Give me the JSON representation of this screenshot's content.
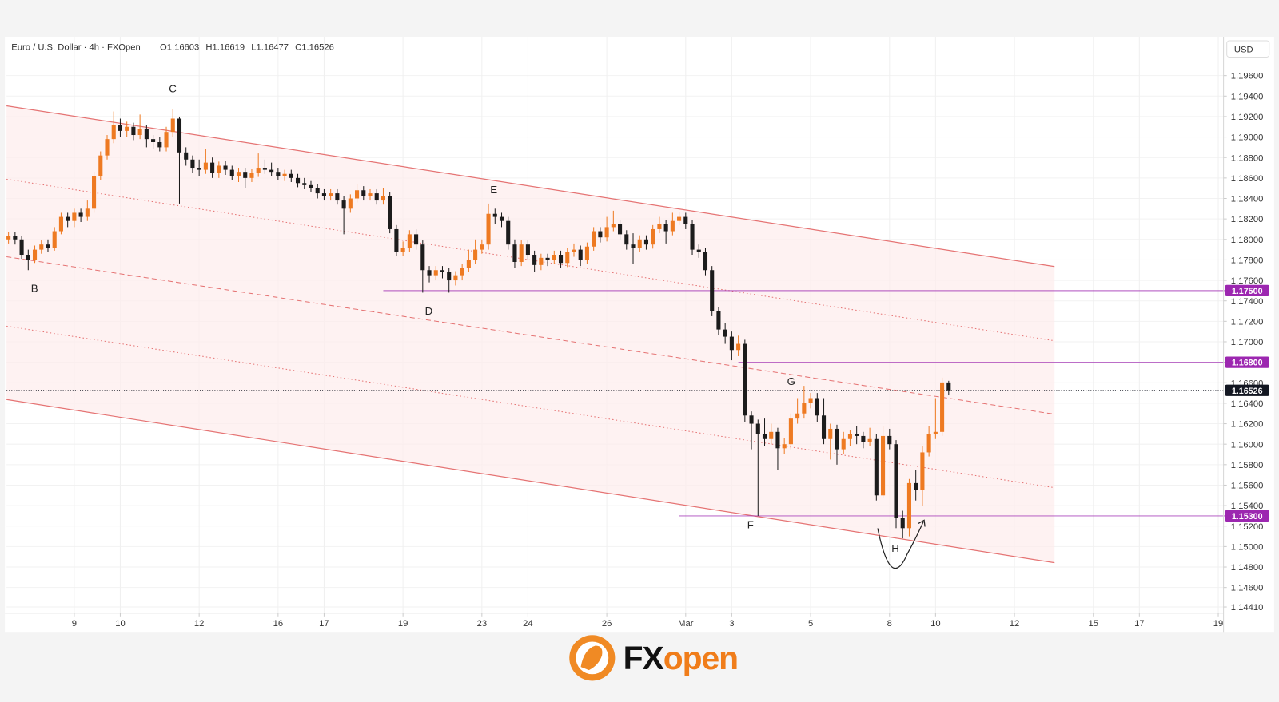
{
  "chart_data": {
    "type": "candlestick",
    "title": "Euro / U.S. Dollar · 4h · FXOpen",
    "ohlc_legend": [
      "O1.16603",
      "H1.16619",
      "L1.16477",
      "C1.16526"
    ],
    "currency": "USD",
    "logo": [
      "FX",
      "open"
    ],
    "annotations": [
      "B",
      "C",
      "D",
      "E",
      "F",
      "G",
      "H"
    ],
    "up_color": "#ee7a22",
    "down_color": "#1c1c1c",
    "grid": true,
    "xlim": [
      -10.3,
      174.8
    ],
    "ylim": [
      1.1435,
      1.1998
    ],
    "xticks": [
      {
        "value": 0,
        "label": "9"
      },
      {
        "value": 7,
        "label": "10"
      },
      {
        "value": 19,
        "label": "12"
      },
      {
        "value": 31,
        "label": "16"
      },
      {
        "value": 38,
        "label": "17"
      },
      {
        "value": 50,
        "label": "19"
      },
      {
        "value": 62,
        "label": "23"
      },
      {
        "value": 69,
        "label": "24"
      },
      {
        "value": 81,
        "label": "26"
      },
      {
        "value": 93,
        "label": "Mar"
      },
      {
        "value": 100,
        "label": "3"
      },
      {
        "value": 112,
        "label": "5"
      },
      {
        "value": 124,
        "label": "8"
      },
      {
        "value": 131,
        "label": "10"
      },
      {
        "value": 143,
        "label": "12"
      },
      {
        "value": 155,
        "label": "15"
      },
      {
        "value": 162,
        "label": "17"
      },
      {
        "value": 174,
        "label": "19"
      }
    ],
    "yticks": [
      {
        "value": 1.196,
        "label": "1.19600"
      },
      {
        "value": 1.194,
        "label": "1.19400"
      },
      {
        "value": 1.192,
        "label": "1.19200"
      },
      {
        "value": 1.19,
        "label": "1.19000"
      },
      {
        "value": 1.188,
        "label": "1.18800"
      },
      {
        "value": 1.186,
        "label": "1.18600"
      },
      {
        "value": 1.184,
        "label": "1.18400"
      },
      {
        "value": 1.182,
        "label": "1.18200"
      },
      {
        "value": 1.18,
        "label": "1.18000"
      },
      {
        "value": 1.178,
        "label": "1.17800"
      },
      {
        "value": 1.176,
        "label": "1.17600"
      },
      {
        "value": 1.174,
        "label": "1.17400"
      },
      {
        "value": 1.172,
        "label": "1.17200"
      },
      {
        "value": 1.17,
        "label": "1.17000"
      },
      {
        "value": 1.168,
        "label": "1.16800"
      },
      {
        "value": 1.166,
        "label": "1.16600"
      },
      {
        "value": 1.164,
        "label": "1.16400"
      },
      {
        "value": 1.162,
        "label": "1.16200"
      },
      {
        "value": 1.16,
        "label": "1.16000"
      },
      {
        "value": 1.158,
        "label": "1.15800"
      },
      {
        "value": 1.156,
        "label": "1.15600"
      },
      {
        "value": 1.154,
        "label": "1.15400"
      },
      {
        "value": 1.152,
        "label": "1.15200"
      },
      {
        "value": 1.15,
        "label": "1.15000"
      },
      {
        "value": 1.148,
        "label": "1.14800"
      },
      {
        "value": 1.146,
        "label": "1.14600"
      },
      {
        "value": 1.1441,
        "label": "1.14410"
      }
    ],
    "x": [
      -10,
      -9,
      -8,
      -7,
      -6,
      -5,
      -4,
      -3,
      -2,
      -1,
      0,
      1,
      2,
      3,
      4,
      5,
      6,
      7,
      8,
      9,
      10,
      11,
      12,
      13,
      14,
      15,
      16,
      17,
      18,
      19,
      20,
      21,
      22,
      23,
      24,
      25,
      26,
      27,
      28,
      29,
      30,
      31,
      32,
      33,
      34,
      35,
      36,
      37,
      38,
      39,
      40,
      41,
      42,
      43,
      44,
      45,
      46,
      47,
      48,
      49,
      50,
      51,
      52,
      53,
      54,
      55,
      56,
      57,
      58,
      59,
      60,
      61,
      62,
      63,
      64,
      65,
      66,
      67,
      68,
      69,
      70,
      71,
      72,
      73,
      74,
      75,
      76,
      77,
      78,
      79,
      80,
      81,
      82,
      83,
      84,
      85,
      86,
      87,
      88,
      89,
      90,
      91,
      92,
      93,
      94,
      95,
      96,
      97,
      98,
      99,
      100,
      101,
      102,
      103,
      104,
      105,
      106,
      107,
      108,
      109,
      110,
      111,
      112,
      113,
      114,
      115,
      116,
      117,
      118,
      119,
      120,
      121,
      122,
      123,
      124,
      125,
      126,
      127,
      128,
      129,
      130,
      131,
      132,
      133
    ],
    "open": [
      1.18,
      1.1803,
      1.18,
      1.1785,
      1.178,
      1.179,
      1.1795,
      1.1792,
      1.1808,
      1.1822,
      1.1818,
      1.1826,
      1.1822,
      1.183,
      1.1862,
      1.1882,
      1.1898,
      1.1912,
      1.1906,
      1.191,
      1.1902,
      1.1908,
      1.1898,
      1.1895,
      1.189,
      1.1905,
      1.1918,
      1.1885,
      1.1878,
      1.187,
      1.1868,
      1.1875,
      1.1865,
      1.1872,
      1.1868,
      1.1862,
      1.1866,
      1.186,
      1.1865,
      1.187,
      1.1868,
      1.1866,
      1.1862,
      1.1864,
      1.186,
      1.1855,
      1.1853,
      1.185,
      1.1845,
      1.1842,
      1.1845,
      1.1838,
      1.183,
      1.184,
      1.1848,
      1.1842,
      1.1845,
      1.1838,
      1.1842,
      1.181,
      1.1788,
      1.1792,
      1.1805,
      1.1795,
      1.177,
      1.1765,
      1.177,
      1.1768,
      1.176,
      1.1765,
      1.1772,
      1.178,
      1.179,
      1.1795,
      1.1825,
      1.1822,
      1.1818,
      1.1795,
      1.1778,
      1.1795,
      1.1785,
      1.1775,
      1.1782,
      1.178,
      1.1785,
      1.1777,
      1.1788,
      1.179,
      1.178,
      1.1793,
      1.1808,
      1.1802,
      1.1812,
      1.1815,
      1.1805,
      1.1795,
      1.1792,
      1.18,
      1.1795,
      1.181,
      1.1815,
      1.1808,
      1.1818,
      1.1822,
      1.1815,
      1.179,
      1.1788,
      1.177,
      1.173,
      1.1712,
      1.1705,
      1.1692,
      1.1698,
      1.1628,
      1.162,
      1.161,
      1.1605,
      1.1612,
      1.1596,
      1.16,
      1.1625,
      1.163,
      1.164,
      1.1645,
      1.1628,
      1.1605,
      1.1615,
      1.1595,
      1.1605,
      1.161,
      1.1608,
      1.1602,
      1.1605,
      1.155,
      1.1608,
      1.16,
      1.1528,
      1.1518,
      1.1562,
      1.1555,
      1.1592,
      1.161,
      1.1612,
      1.16603
    ],
    "high": [
      1.1807,
      1.1807,
      1.1803,
      1.179,
      1.1794,
      1.1799,
      1.18,
      1.1812,
      1.1826,
      1.1826,
      1.183,
      1.183,
      1.1838,
      1.1866,
      1.1886,
      1.1902,
      1.1925,
      1.1918,
      1.1915,
      1.1914,
      1.1922,
      1.1912,
      1.1902,
      1.19,
      1.191,
      1.1927,
      1.192,
      1.189,
      1.1882,
      1.1878,
      1.1888,
      1.188,
      1.1876,
      1.1877,
      1.1872,
      1.187,
      1.187,
      1.1869,
      1.1884,
      1.1878,
      1.1875,
      1.187,
      1.1868,
      1.1868,
      1.1864,
      1.186,
      1.1857,
      1.1854,
      1.1849,
      1.1849,
      1.1849,
      1.1842,
      1.1844,
      1.1854,
      1.1852,
      1.1849,
      1.1849,
      1.185,
      1.1846,
      1.1814,
      1.1798,
      1.1809,
      1.181,
      1.1799,
      1.1774,
      1.1774,
      1.1774,
      1.1772,
      1.1769,
      1.1776,
      1.179,
      1.18,
      1.18,
      1.1835,
      1.183,
      1.1826,
      1.1822,
      1.18,
      1.1799,
      1.1799,
      1.1789,
      1.1786,
      1.1786,
      1.1789,
      1.1789,
      1.1792,
      1.1796,
      1.1794,
      1.1797,
      1.1812,
      1.1812,
      1.1822,
      1.1828,
      1.1819,
      1.1809,
      1.1806,
      1.1804,
      1.1804,
      1.1814,
      1.1822,
      1.1819,
      1.1826,
      1.1827,
      1.1826,
      1.1819,
      1.1795,
      1.1792,
      1.1774,
      1.1734,
      1.1718,
      1.171,
      1.1706,
      1.1702,
      1.1632,
      1.1624,
      1.1625,
      1.162,
      1.1616,
      1.1606,
      1.163,
      1.1645,
      1.1657,
      1.165,
      1.165,
      1.1645,
      1.162,
      1.1619,
      1.1612,
      1.1614,
      1.1618,
      1.1612,
      1.1616,
      1.161,
      1.1618,
      1.1615,
      1.1604,
      1.1535,
      1.1566,
      1.1575,
      1.1598,
      1.1618,
      1.1645,
      1.1665,
      1.16619
    ],
    "low": [
      1.1796,
      1.1795,
      1.1781,
      1.177,
      1.1777,
      1.1786,
      1.1788,
      1.1789,
      1.1805,
      1.1812,
      1.1812,
      1.1817,
      1.1818,
      1.1826,
      1.1858,
      1.1878,
      1.1894,
      1.19,
      1.19,
      1.1897,
      1.1898,
      1.189,
      1.1888,
      1.1886,
      1.1886,
      1.19,
      1.1835,
      1.1872,
      1.1865,
      1.1862,
      1.1864,
      1.186,
      1.186,
      1.1863,
      1.1858,
      1.1856,
      1.185,
      1.1856,
      1.1861,
      1.1864,
      1.1862,
      1.1858,
      1.1857,
      1.1856,
      1.1851,
      1.1849,
      1.1846,
      1.184,
      1.1838,
      1.1838,
      1.1834,
      1.1805,
      1.1826,
      1.1836,
      1.1838,
      1.1838,
      1.1834,
      1.1834,
      1.1806,
      1.1784,
      1.1784,
      1.1788,
      1.179,
      1.1748,
      1.1758,
      1.176,
      1.1762,
      1.1748,
      1.1755,
      1.176,
      1.1768,
      1.1776,
      1.1786,
      1.179,
      1.1815,
      1.1812,
      1.179,
      1.1772,
      1.1774,
      1.178,
      1.1768,
      1.177,
      1.1774,
      1.1776,
      1.1772,
      1.1773,
      1.1783,
      1.1774,
      1.1776,
      1.1789,
      1.1797,
      1.1798,
      1.1808,
      1.18,
      1.179,
      1.1776,
      1.1788,
      1.179,
      1.1791,
      1.1806,
      1.1796,
      1.1804,
      1.1814,
      1.181,
      1.1785,
      1.1782,
      1.1765,
      1.1725,
      1.1707,
      1.1698,
      1.1682,
      1.1686,
      1.1622,
      1.1595,
      1.153,
      1.1598,
      1.16,
      1.1575,
      1.159,
      1.1595,
      1.162,
      1.1625,
      1.1635,
      1.1622,
      1.16,
      1.1585,
      1.158,
      1.159,
      1.1598,
      1.16,
      1.1596,
      1.1598,
      1.1545,
      1.1548,
      1.1595,
      1.1518,
      1.1508,
      1.151,
      1.1545,
      1.154,
      1.1588,
      1.1605,
      1.1608,
      1.16477
    ],
    "close": [
      1.1803,
      1.18,
      1.1785,
      1.178,
      1.179,
      1.1795,
      1.1792,
      1.1808,
      1.1822,
      1.1818,
      1.1826,
      1.1822,
      1.183,
      1.1862,
      1.1882,
      1.1898,
      1.1912,
      1.1906,
      1.191,
      1.1902,
      1.1908,
      1.1898,
      1.1895,
      1.189,
      1.1905,
      1.1918,
      1.1885,
      1.1878,
      1.187,
      1.1868,
      1.1875,
      1.1865,
      1.1872,
      1.1868,
      1.1862,
      1.1866,
      1.186,
      1.1865,
      1.187,
      1.1868,
      1.1866,
      1.1862,
      1.1864,
      1.186,
      1.1855,
      1.1853,
      1.185,
      1.1845,
      1.1842,
      1.1845,
      1.1838,
      1.183,
      1.184,
      1.1848,
      1.1842,
      1.1845,
      1.1838,
      1.1842,
      1.181,
      1.1788,
      1.1792,
      1.1805,
      1.1795,
      1.177,
      1.1765,
      1.177,
      1.1768,
      1.176,
      1.1765,
      1.1772,
      1.178,
      1.179,
      1.1795,
      1.1825,
      1.1822,
      1.1818,
      1.1795,
      1.1778,
      1.1795,
      1.1785,
      1.1775,
      1.1782,
      1.178,
      1.1785,
      1.1777,
      1.1788,
      1.179,
      1.178,
      1.1793,
      1.1808,
      1.1802,
      1.1812,
      1.1815,
      1.1805,
      1.1795,
      1.1792,
      1.18,
      1.1795,
      1.181,
      1.1815,
      1.1808,
      1.1818,
      1.1822,
      1.1815,
      1.179,
      1.1788,
      1.177,
      1.173,
      1.1712,
      1.1705,
      1.1692,
      1.1698,
      1.1628,
      1.162,
      1.161,
      1.1605,
      1.1612,
      1.1596,
      1.16,
      1.1625,
      1.163,
      1.164,
      1.1645,
      1.1628,
      1.1605,
      1.1615,
      1.1595,
      1.1605,
      1.161,
      1.1608,
      1.1602,
      1.1605,
      1.155,
      1.1608,
      1.16,
      1.1528,
      1.1518,
      1.1562,
      1.1555,
      1.1592,
      1.161,
      1.1612,
      1.16603,
      1.16526
    ],
    "channel": [
      {
        "x": [
          -10.3,
          149.1
        ],
        "values": [
          1.19305,
          1.17735
        ],
        "style": "solid",
        "color": "#e57373"
      },
      {
        "x": [
          -10.3,
          149.1
        ],
        "values": [
          1.18588,
          1.1701
        ],
        "style": "dotted",
        "color": "#e57373"
      },
      {
        "x": [
          -10.3,
          149.1
        ],
        "values": [
          1.17831,
          1.16293
        ],
        "style": "dashed",
        "color": "#e57373"
      },
      {
        "x": [
          -10.3,
          149.1
        ],
        "values": [
          1.17153,
          1.15575
        ],
        "style": "dotted",
        "color": "#e57373"
      },
      {
        "x": [
          -10.3,
          149.1
        ],
        "values": [
          1.16436,
          1.14842
        ],
        "style": "solid",
        "color": "#e57373"
      }
    ],
    "channel_fill": "#fdecec",
    "levels": [
      {
        "value": 1.175,
        "label": "1.17500",
        "start": 47,
        "color": "#9c27b0"
      },
      {
        "value": 1.168,
        "label": "1.16800",
        "start": 101,
        "color": "#9c27b0"
      },
      {
        "value": 1.153,
        "label": "1.15300",
        "start": 92,
        "color": "#9c27b0"
      }
    ],
    "last_price": {
      "value": 1.16526,
      "label": "1.16526",
      "color": "#131722"
    }
  }
}
